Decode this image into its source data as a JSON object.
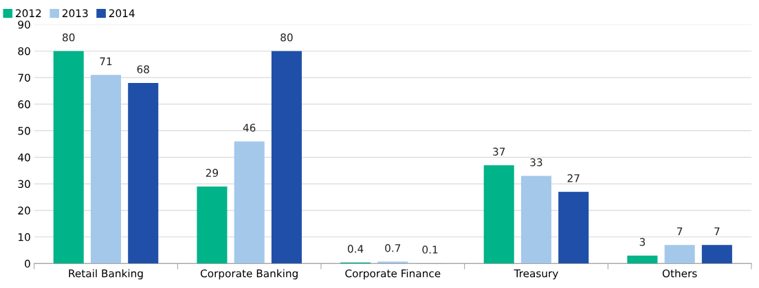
{
  "chart_data": {
    "type": "bar",
    "categories": [
      "Retail Banking",
      "Corporate Banking",
      "Corporate Finance",
      "Treasury",
      "Others"
    ],
    "series": [
      {
        "name": "2012",
        "color": "#00b388",
        "values": [
          80,
          29,
          0.4,
          37,
          3
        ]
      },
      {
        "name": "2013",
        "color": "#a3c8ea",
        "values": [
          71,
          46,
          0.7,
          33,
          7
        ]
      },
      {
        "name": "2014",
        "color": "#1f4fa8",
        "values": [
          68,
          80,
          0.1,
          27,
          7
        ]
      }
    ],
    "ylim": [
      0,
      90
    ],
    "yticks": [
      0,
      10,
      20,
      30,
      40,
      50,
      60,
      70,
      80,
      90
    ],
    "grid": "y",
    "legend": "top left",
    "data_labels": true
  }
}
